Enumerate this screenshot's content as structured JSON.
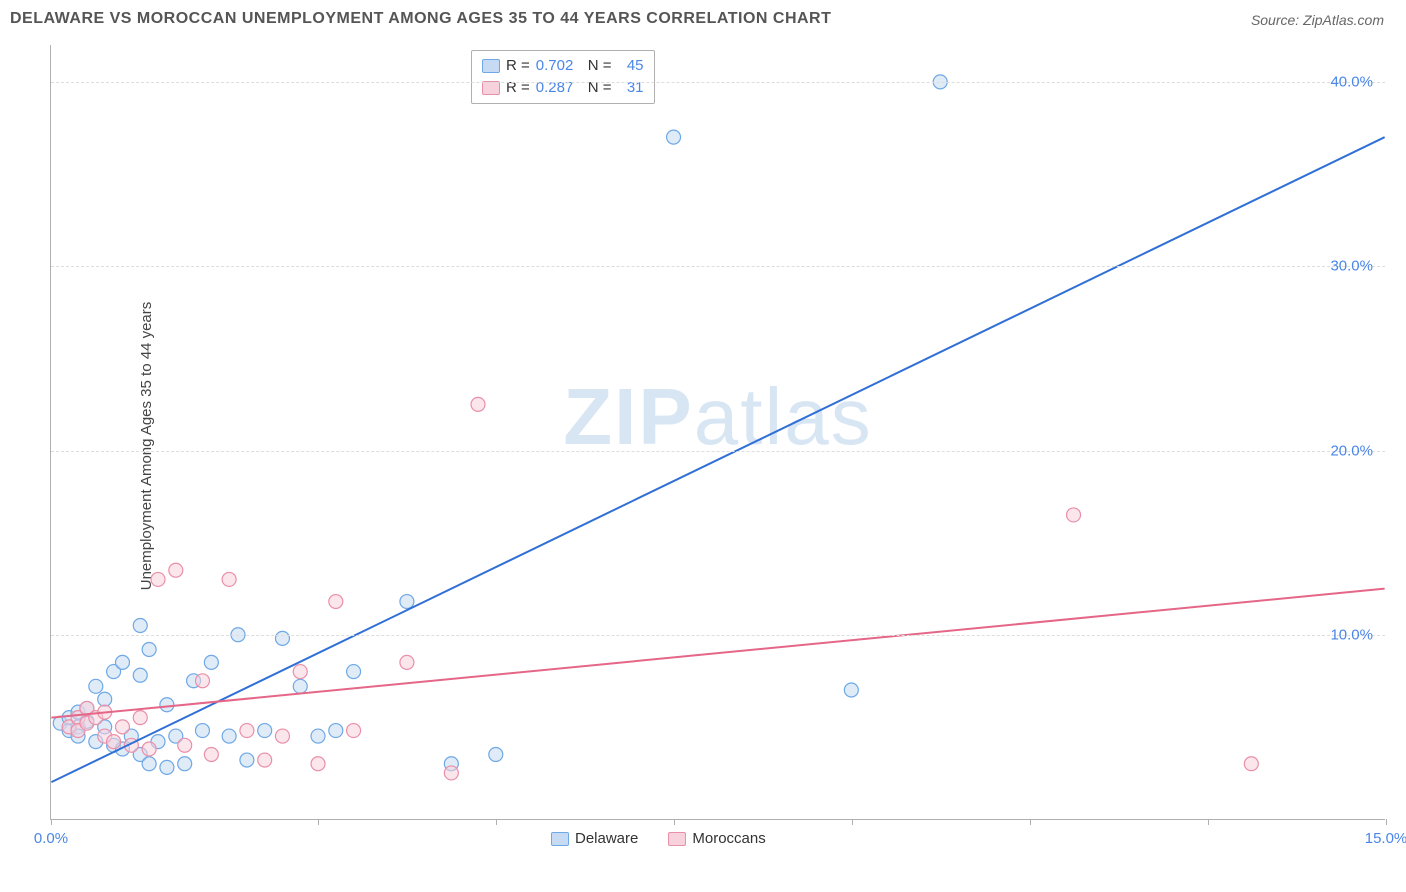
{
  "title": "DELAWARE VS MOROCCAN UNEMPLOYMENT AMONG AGES 35 TO 44 YEARS CORRELATION CHART",
  "source": "Source: ZipAtlas.com",
  "watermark_part1": "ZIP",
  "watermark_part2": "atlas",
  "y_axis_title": "Unemployment Among Ages 35 to 44 years",
  "chart": {
    "type": "scatter_with_regression",
    "xlim": [
      0,
      15
    ],
    "ylim": [
      0,
      42
    ],
    "y_ticks": [
      10,
      20,
      30,
      40
    ],
    "y_tick_labels": [
      "10.0%",
      "20.0%",
      "30.0%",
      "40.0%"
    ],
    "x_ticks": [
      0,
      3,
      5,
      7,
      9,
      11,
      13,
      15
    ],
    "x_tick_labels_shown": {
      "0": "0.0%",
      "15": "15.0%"
    },
    "x_label_color": "#4a86e8",
    "y_label_color": "#4a86e8",
    "grid_color": "#dddddd",
    "background_color": "#ffffff",
    "marker_radius": 7,
    "marker_stroke_width": 1.2,
    "marker_opacity": 0.55,
    "line_width": 2,
    "series": [
      {
        "name": "Delaware",
        "color_fill": "#c6dbf3",
        "color_stroke": "#6ea8e6",
        "line_color": "#2f6fd6",
        "R": 0.702,
        "N": 45,
        "regression": {
          "x1": 0,
          "y1": 2.0,
          "x2": 15,
          "y2": 37.0
        },
        "points": [
          [
            0.1,
            5.2
          ],
          [
            0.2,
            4.8
          ],
          [
            0.2,
            5.5
          ],
          [
            0.3,
            5.0
          ],
          [
            0.3,
            4.5
          ],
          [
            0.3,
            5.8
          ],
          [
            0.4,
            6.0
          ],
          [
            0.4,
            5.3
          ],
          [
            0.5,
            4.2
          ],
          [
            0.5,
            7.2
          ],
          [
            0.6,
            5.0
          ],
          [
            0.6,
            6.5
          ],
          [
            0.7,
            8.0
          ],
          [
            0.7,
            4.0
          ],
          [
            0.8,
            3.8
          ],
          [
            0.8,
            8.5
          ],
          [
            0.9,
            4.5
          ],
          [
            1.0,
            7.8
          ],
          [
            1.0,
            3.5
          ],
          [
            1.0,
            10.5
          ],
          [
            1.1,
            3.0
          ],
          [
            1.1,
            9.2
          ],
          [
            1.2,
            4.2
          ],
          [
            1.3,
            2.8
          ],
          [
            1.4,
            4.5
          ],
          [
            1.5,
            3.0
          ],
          [
            1.6,
            7.5
          ],
          [
            1.7,
            4.8
          ],
          [
            1.8,
            8.5
          ],
          [
            2.0,
            4.5
          ],
          [
            2.1,
            10.0
          ],
          [
            2.2,
            3.2
          ],
          [
            2.4,
            4.8
          ],
          [
            2.6,
            9.8
          ],
          [
            2.8,
            7.2
          ],
          [
            3.0,
            4.5
          ],
          [
            3.2,
            4.8
          ],
          [
            3.4,
            8.0
          ],
          [
            4.0,
            11.8
          ],
          [
            4.5,
            3.0
          ],
          [
            5.0,
            3.5
          ],
          [
            7.0,
            37.0
          ],
          [
            9.0,
            7.0
          ],
          [
            10.0,
            40.0
          ],
          [
            1.3,
            6.2
          ]
        ]
      },
      {
        "name": "Moroccans",
        "color_fill": "#f7d1dc",
        "color_stroke": "#ea8fa8",
        "line_color": "#e56687",
        "R": 0.287,
        "N": 31,
        "regression": {
          "x1": 0,
          "y1": 5.5,
          "x2": 15,
          "y2": 12.5
        },
        "points": [
          [
            0.2,
            5.0
          ],
          [
            0.3,
            5.5
          ],
          [
            0.3,
            4.8
          ],
          [
            0.4,
            6.0
          ],
          [
            0.4,
            5.2
          ],
          [
            0.5,
            5.5
          ],
          [
            0.6,
            4.5
          ],
          [
            0.6,
            5.8
          ],
          [
            0.7,
            4.2
          ],
          [
            0.8,
            5.0
          ],
          [
            0.9,
            4.0
          ],
          [
            1.0,
            5.5
          ],
          [
            1.1,
            3.8
          ],
          [
            1.2,
            13.0
          ],
          [
            1.4,
            13.5
          ],
          [
            1.5,
            4.0
          ],
          [
            1.7,
            7.5
          ],
          [
            1.8,
            3.5
          ],
          [
            2.0,
            13.0
          ],
          [
            2.2,
            4.8
          ],
          [
            2.4,
            3.2
          ],
          [
            2.6,
            4.5
          ],
          [
            2.8,
            8.0
          ],
          [
            3.0,
            3.0
          ],
          [
            3.2,
            11.8
          ],
          [
            3.4,
            4.8
          ],
          [
            4.0,
            8.5
          ],
          [
            4.8,
            22.5
          ],
          [
            4.5,
            2.5
          ],
          [
            11.5,
            16.5
          ],
          [
            13.5,
            3.0
          ]
        ]
      }
    ]
  },
  "legend_top": {
    "R_label": "R =",
    "N_label": "N =",
    "value_color": "#4a86e8",
    "text_color": "#333333"
  },
  "legend_bottom": {
    "series1_label": "Delaware",
    "series2_label": "Moroccans"
  }
}
